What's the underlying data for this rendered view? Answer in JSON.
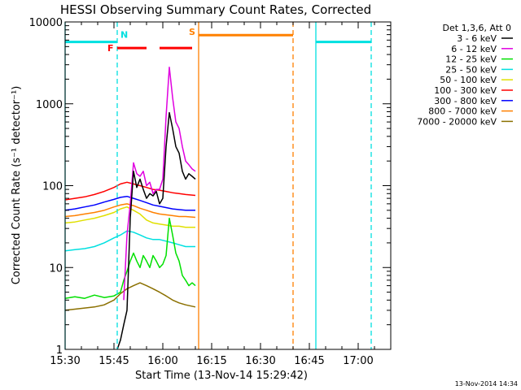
{
  "chart_data": {
    "type": "line",
    "title": "HESSI Observing Summary Count Rates, Corrected",
    "xlabel": "Start Time (13-Nov-14 15:29:42)",
    "ylabel": "Corrected Count Rate (s⁻¹ detector⁻¹)",
    "y_scale": "log",
    "ylim": [
      1,
      10000
    ],
    "xlim": [
      "15:30",
      "17:10"
    ],
    "x_ticks": [
      "15:30",
      "15:45",
      "16:00",
      "16:15",
      "16:30",
      "16:45",
      "17:00"
    ],
    "y_ticks": [
      "1",
      "10",
      "100",
      "1000",
      "10000"
    ],
    "grid": false,
    "legend_position": "right",
    "legend_title": "Det 1,3,6, Att 0",
    "series": [
      {
        "name": "3 - 6 keV",
        "color": "#000000",
        "x": [
          "15:46",
          "15:47",
          "15:48",
          "15:49",
          "15:50",
          "15:51",
          "15:52",
          "15:53",
          "15:54",
          "15:55",
          "15:56",
          "15:57",
          "15:58",
          "15:59",
          "16:00",
          "16:01",
          "16:02",
          "16:03",
          "16:04",
          "16:05",
          "16:06",
          "16:07",
          "16:08",
          "16:09",
          "16:10"
        ],
        "values": [
          1,
          1.3,
          2,
          3,
          40,
          150,
          95,
          120,
          90,
          70,
          80,
          75,
          85,
          60,
          70,
          300,
          780,
          500,
          300,
          250,
          150,
          120,
          140,
          130,
          120
        ]
      },
      {
        "name": "6 - 12 keV",
        "color": "#e000e0",
        "x": [
          "15:48",
          "15:49",
          "15:50",
          "15:51",
          "15:52",
          "15:53",
          "15:54",
          "15:55",
          "15:56",
          "15:57",
          "15:58",
          "15:59",
          "16:00",
          "16:01",
          "16:02",
          "16:03",
          "16:04",
          "16:05",
          "16:06",
          "16:07",
          "16:08",
          "16:09",
          "16:10"
        ],
        "values": [
          4,
          25,
          60,
          190,
          140,
          130,
          150,
          100,
          110,
          80,
          90,
          90,
          120,
          700,
          2800,
          1200,
          600,
          500,
          300,
          200,
          180,
          160,
          150
        ]
      },
      {
        "name": "12 - 25 keV",
        "color": "#00e000",
        "x": [
          "15:30",
          "15:33",
          "15:36",
          "15:39",
          "15:42",
          "15:45",
          "15:47",
          "15:48",
          "15:49",
          "15:50",
          "15:51",
          "15:52",
          "15:53",
          "15:54",
          "15:55",
          "15:56",
          "15:57",
          "15:58",
          "15:59",
          "16:00",
          "16:01",
          "16:02",
          "16:03",
          "16:04",
          "16:05",
          "16:06",
          "16:07",
          "16:08",
          "16:09",
          "16:10"
        ],
        "values": [
          4.2,
          4.4,
          4.2,
          4.6,
          4.3,
          4.5,
          5,
          7,
          9,
          12,
          15,
          12,
          10,
          14,
          12,
          10,
          14,
          12,
          10,
          11,
          14,
          40,
          25,
          15,
          12,
          8,
          7,
          6,
          6.5,
          6
        ]
      },
      {
        "name": "25 - 50 keV",
        "color": "#00e0e0",
        "x": [
          "15:30",
          "15:33",
          "15:36",
          "15:39",
          "15:42",
          "15:45",
          "15:47",
          "15:49",
          "15:51",
          "15:53",
          "15:55",
          "15:57",
          "15:59",
          "16:01",
          "16:03",
          "16:05",
          "16:07",
          "16:10"
        ],
        "values": [
          16,
          16.5,
          17,
          18,
          20,
          23,
          25,
          28,
          27,
          25,
          23,
          22,
          22,
          21,
          20,
          19,
          18,
          18
        ]
      },
      {
        "name": "50 - 100 keV",
        "color": "#e0e000",
        "x": [
          "15:30",
          "15:33",
          "15:36",
          "15:39",
          "15:42",
          "15:45",
          "15:47",
          "15:49",
          "15:51",
          "15:53",
          "15:55",
          "15:57",
          "15:59",
          "16:01",
          "16:03",
          "16:05",
          "16:07",
          "16:10"
        ],
        "values": [
          35,
          36,
          38,
          40,
          43,
          47,
          52,
          55,
          50,
          45,
          38,
          35,
          34,
          33,
          32,
          32,
          31,
          31
        ]
      },
      {
        "name": "100 - 300 keV",
        "color": "#ff0000",
        "x": [
          "15:30",
          "15:33",
          "15:36",
          "15:39",
          "15:42",
          "15:45",
          "15:47",
          "15:49",
          "15:51",
          "15:53",
          "15:55",
          "15:57",
          "15:59",
          "16:01",
          "16:03",
          "16:05",
          "16:07",
          "16:10"
        ],
        "values": [
          67,
          70,
          73,
          78,
          85,
          95,
          105,
          110,
          105,
          100,
          95,
          90,
          88,
          85,
          82,
          80,
          78,
          76
        ]
      },
      {
        "name": "300 - 800 keV",
        "color": "#0000ff",
        "x": [
          "15:30",
          "15:33",
          "15:36",
          "15:39",
          "15:42",
          "15:45",
          "15:47",
          "15:49",
          "15:51",
          "15:53",
          "15:55",
          "15:57",
          "15:59",
          "16:01",
          "16:03",
          "16:05",
          "16:07",
          "16:10"
        ],
        "values": [
          50,
          52,
          55,
          58,
          63,
          68,
          72,
          74,
          70,
          66,
          62,
          58,
          56,
          54,
          52,
          51,
          50,
          50
        ]
      },
      {
        "name": "800 - 7000 keV",
        "color": "#ff8000",
        "x": [
          "15:30",
          "15:33",
          "15:36",
          "15:39",
          "15:42",
          "15:45",
          "15:47",
          "15:49",
          "15:51",
          "15:53",
          "15:55",
          "15:57",
          "15:59",
          "16:01",
          "16:03",
          "16:05",
          "16:07",
          "16:10"
        ],
        "values": [
          42,
          43,
          45,
          47,
          50,
          55,
          58,
          60,
          57,
          53,
          50,
          47,
          45,
          44,
          43,
          42,
          42,
          41
        ]
      },
      {
        "name": "7000 - 20000 keV",
        "color": "#8b7000",
        "x": [
          "15:30",
          "15:33",
          "15:36",
          "15:39",
          "15:42",
          "15:45",
          "15:47",
          "15:49",
          "15:51",
          "15:53",
          "15:55",
          "15:57",
          "15:59",
          "16:01",
          "16:03",
          "16:05",
          "16:07",
          "16:10"
        ],
        "values": [
          3,
          3.1,
          3.2,
          3.3,
          3.5,
          4,
          4.8,
          5.5,
          6,
          6.5,
          6,
          5.5,
          5,
          4.5,
          4,
          3.7,
          3.5,
          3.3
        ]
      }
    ],
    "segments": [
      {
        "color": "#00e0e0",
        "from": "15:30",
        "to": "15:46",
        "y": 5700
      },
      {
        "color": "#00e0e0",
        "from": "16:47",
        "to": "17:04",
        "y": 5700
      },
      {
        "color": "#ff8000",
        "from": "16:11",
        "to": "16:40",
        "y": 6900
      },
      {
        "color": "#ff0000",
        "from": "15:46",
        "to": "15:55",
        "y": 4800
      },
      {
        "color": "#ff0000",
        "from": "15:59",
        "to": "16:09",
        "y": 4800
      }
    ],
    "vertical_markers": [
      {
        "t": "15:30",
        "color": "#00e0e0",
        "style": "solid"
      },
      {
        "t": "15:46",
        "color": "#00e0e0",
        "style": "dashed"
      },
      {
        "t": "16:11",
        "color": "#ff8000",
        "style": "solid"
      },
      {
        "t": "16:40",
        "color": "#ff8000",
        "style": "dashed"
      },
      {
        "t": "16:47",
        "color": "#00e0e0",
        "style": "solid"
      },
      {
        "t": "17:04",
        "color": "#00e0e0",
        "style": "dashed"
      }
    ],
    "flag_labels": [
      {
        "text": "N",
        "color": "#00e0e0",
        "t": "15:47",
        "y": 7000
      },
      {
        "text": "F",
        "color": "#ff0000",
        "t": "15:43",
        "y": 4800
      },
      {
        "text": "S",
        "color": "#ff8000",
        "t": "16:08",
        "y": 7600
      }
    ]
  },
  "timestamp": "13-Nov-2014 14:34"
}
